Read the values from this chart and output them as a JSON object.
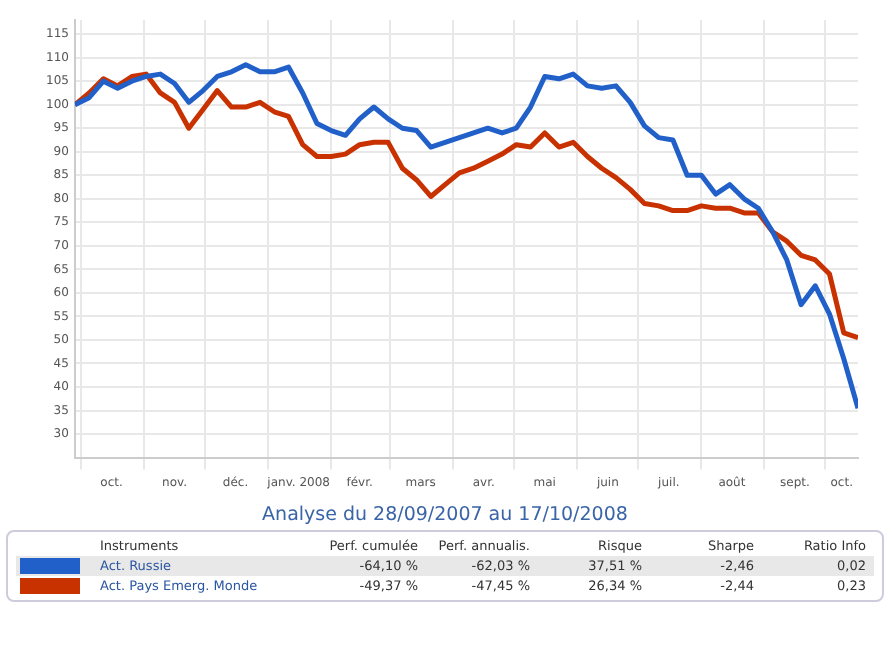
{
  "chart_data": {
    "type": "line",
    "title": "Analyse du 28/09/2007 au 17/10/2008",
    "x": [
      "2007-09-28",
      "2007-10-05",
      "2007-10-12",
      "2007-10-19",
      "2007-10-26",
      "2007-11-02",
      "2007-11-09",
      "2007-11-16",
      "2007-11-23",
      "2007-11-30",
      "2007-12-07",
      "2007-12-14",
      "2007-12-21",
      "2007-12-28",
      "2008-01-04",
      "2008-01-11",
      "2008-01-18",
      "2008-01-25",
      "2008-02-01",
      "2008-02-08",
      "2008-02-15",
      "2008-02-22",
      "2008-02-29",
      "2008-03-07",
      "2008-03-14",
      "2008-03-21",
      "2008-03-28",
      "2008-04-04",
      "2008-04-11",
      "2008-04-18",
      "2008-04-25",
      "2008-05-02",
      "2008-05-09",
      "2008-05-16",
      "2008-05-23",
      "2008-05-30",
      "2008-06-06",
      "2008-06-13",
      "2008-06-20",
      "2008-06-27",
      "2008-07-04",
      "2008-07-11",
      "2008-07-18",
      "2008-07-25",
      "2008-08-01",
      "2008-08-08",
      "2008-08-15",
      "2008-08-22",
      "2008-08-29",
      "2008-09-05",
      "2008-09-12",
      "2008-09-19",
      "2008-09-26",
      "2008-10-03",
      "2008-10-10",
      "2008-10-17"
    ],
    "series": [
      {
        "name": "Act. Russie",
        "color": "#2060c8",
        "values": [
          100,
          101.5,
          105,
          103.5,
          105,
          106,
          106.5,
          104.5,
          100.5,
          103,
          106,
          107,
          108.5,
          107,
          107,
          108,
          102.5,
          96,
          94.5,
          93.5,
          97,
          99.5,
          97,
          95,
          94.5,
          91,
          92,
          93,
          94,
          95,
          94,
          95,
          99.5,
          106,
          105.5,
          106.5,
          104,
          103.5,
          104,
          100.5,
          95.5,
          93,
          92.5,
          85,
          85,
          81,
          83,
          80,
          78,
          73,
          67,
          57.5,
          61.5,
          55.5,
          46,
          35.5
        ]
      },
      {
        "name": "Act. Pays Emerg. Monde",
        "color": "#c83200",
        "values": [
          100,
          102.5,
          105.5,
          104,
          106,
          106.5,
          102.5,
          100.5,
          95,
          99,
          103,
          99.5,
          99.5,
          100.5,
          98.5,
          97.5,
          91.5,
          89,
          89,
          89.5,
          91.5,
          92,
          92,
          86.5,
          84,
          80.5,
          83,
          85.5,
          86.5,
          88,
          89.5,
          91.5,
          91,
          94,
          91,
          92,
          89,
          86.5,
          84.5,
          82,
          79,
          78.5,
          77.5,
          77.5,
          78.5,
          78,
          78,
          77,
          77,
          73,
          71,
          68,
          67,
          64,
          51.5,
          50.5
        ]
      }
    ],
    "xlim": [
      "2007-09-28",
      "2008-10-17"
    ],
    "xticks": [
      {
        "value": "2007-10-01",
        "label": null
      },
      {
        "value": "2007-10-16",
        "label": "oct."
      },
      {
        "value": "2007-11-01",
        "label": null
      },
      {
        "value": "2007-11-16",
        "label": "nov."
      },
      {
        "value": "2007-12-01",
        "label": null
      },
      {
        "value": "2007-12-16",
        "label": "déc."
      },
      {
        "value": "2008-01-01",
        "label": null
      },
      {
        "value": "2008-01-16",
        "label": "janv. 2008"
      },
      {
        "value": "2008-02-01",
        "label": null
      },
      {
        "value": "2008-02-15",
        "label": "févr."
      },
      {
        "value": "2008-03-01",
        "label": null
      },
      {
        "value": "2008-03-16",
        "label": "mars"
      },
      {
        "value": "2008-04-01",
        "label": null
      },
      {
        "value": "2008-04-16",
        "label": "avr."
      },
      {
        "value": "2008-05-01",
        "label": null
      },
      {
        "value": "2008-05-16",
        "label": "mai"
      },
      {
        "value": "2008-06-01",
        "label": null
      },
      {
        "value": "2008-06-16",
        "label": "juin"
      },
      {
        "value": "2008-07-01",
        "label": null
      },
      {
        "value": "2008-07-16",
        "label": "juil."
      },
      {
        "value": "2008-08-01",
        "label": null
      },
      {
        "value": "2008-08-16",
        "label": "août"
      },
      {
        "value": "2008-09-01",
        "label": null
      },
      {
        "value": "2008-09-16",
        "label": "sept."
      },
      {
        "value": "2008-10-01",
        "label": null
      },
      {
        "value": "2008-10-09",
        "label": "oct."
      }
    ],
    "ylim": [
      25,
      118
    ],
    "yticks": [
      30,
      35,
      40,
      45,
      50,
      55,
      60,
      65,
      70,
      75,
      80,
      85,
      90,
      95,
      100,
      105,
      110,
      115
    ],
    "grid": true,
    "legend": "bottom",
    "annotations": [
      "Instruments",
      "Perf. cumulée",
      "Perf. annualis.",
      "Risque",
      "Sharpe",
      "Ratio Info",
      "-64,10 %",
      "-62,03 %",
      "37,51 %",
      "-2,46",
      "0,02",
      "-49,37 %",
      "-47,45 %",
      "26,34 %",
      "-2,44",
      "0,23"
    ]
  }
}
